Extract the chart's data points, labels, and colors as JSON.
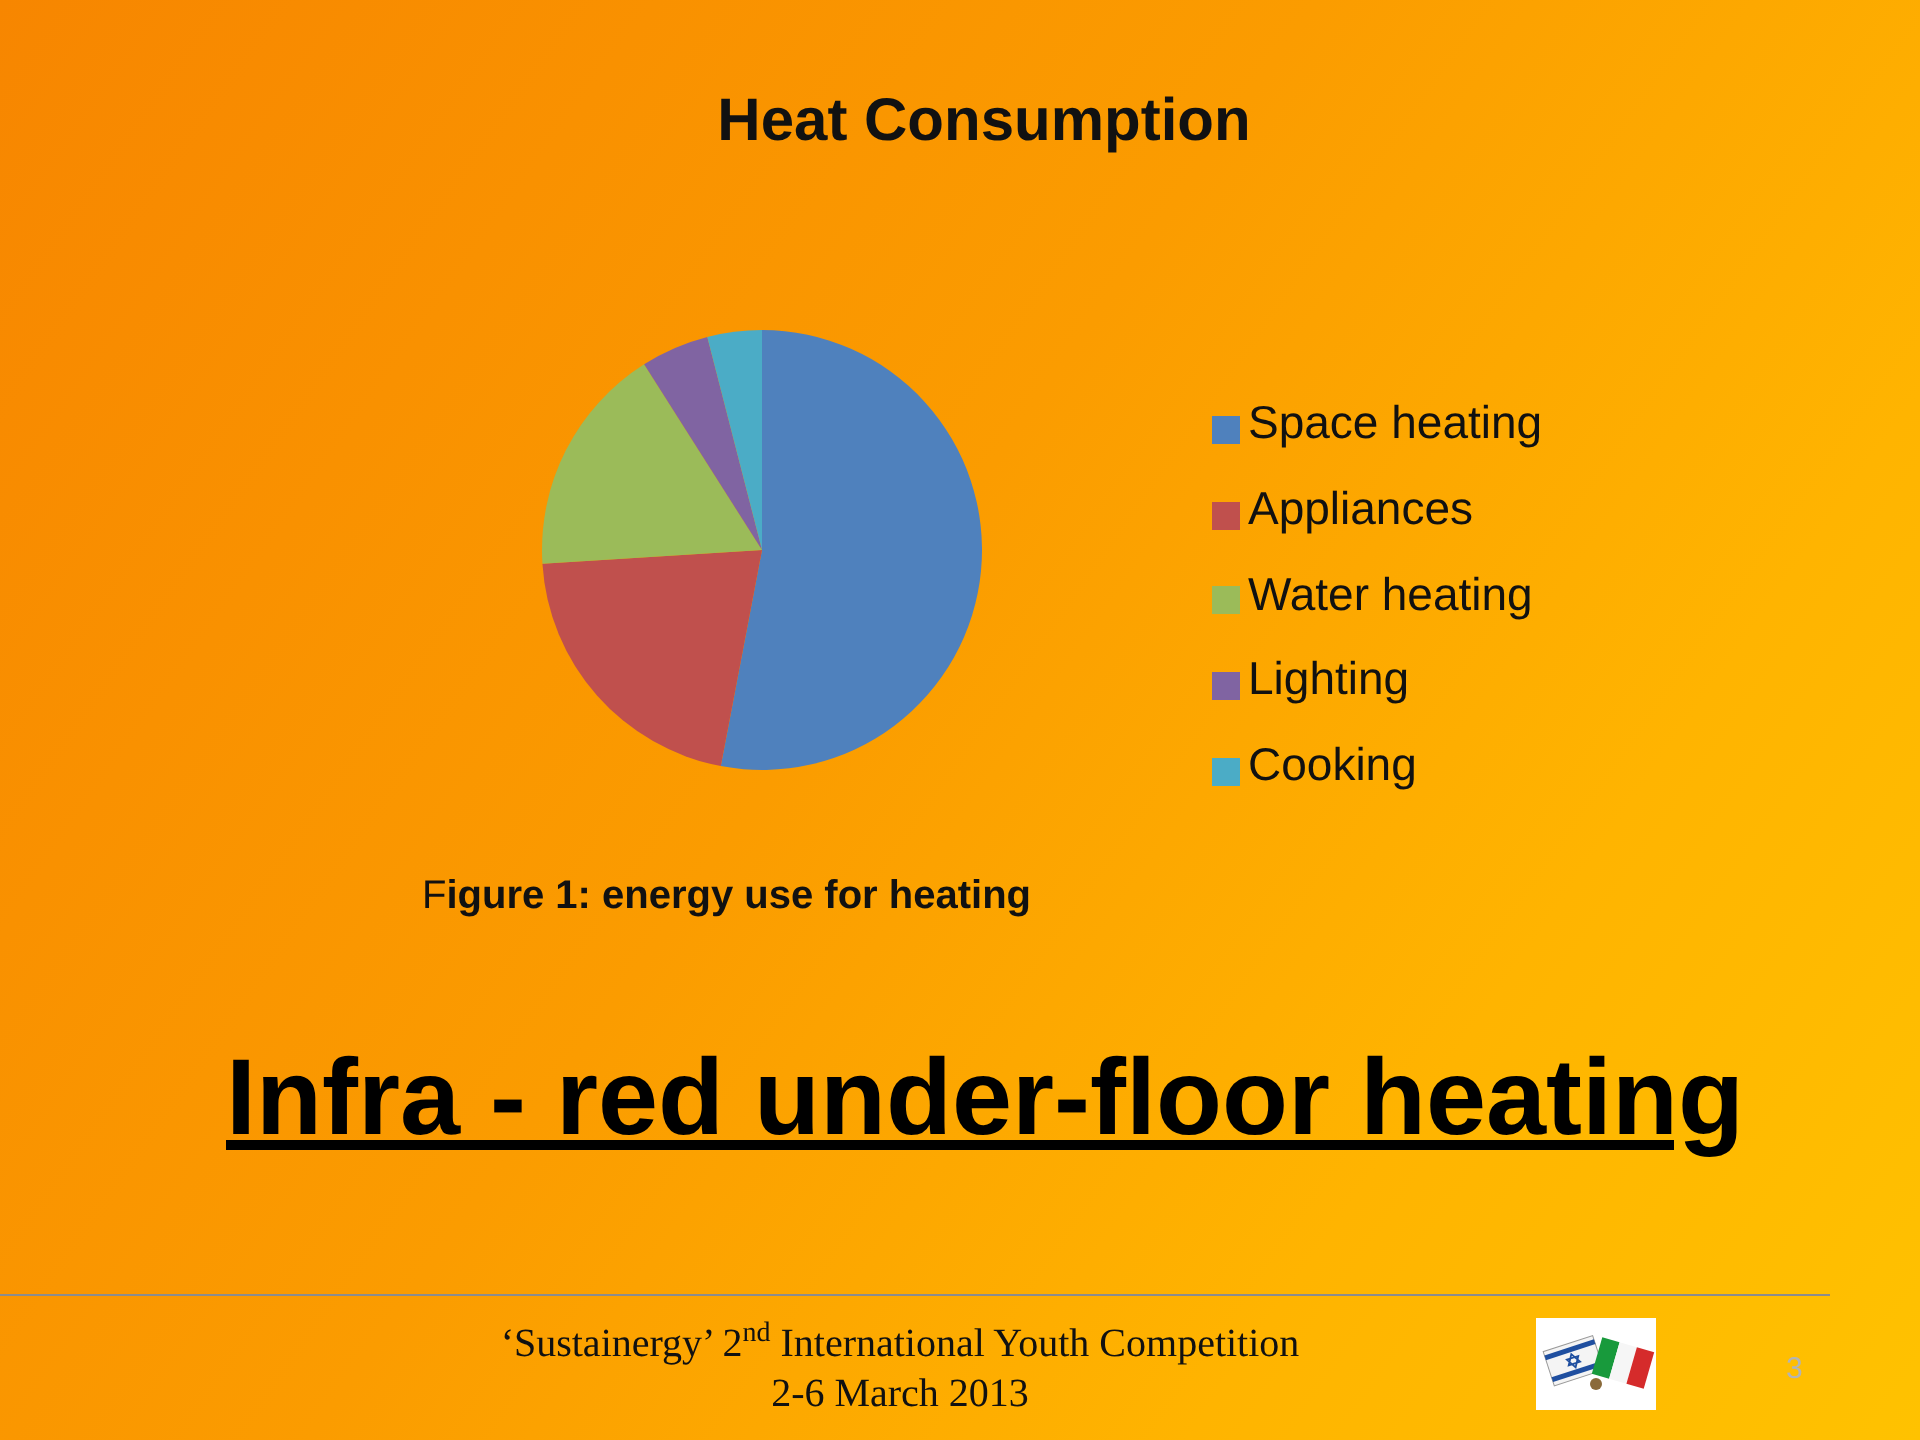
{
  "chart_data": {
    "type": "pie",
    "title": "Heat Consumption",
    "categories": [
      "Space heating",
      "Appliances",
      "Water heating",
      "Lighting",
      "Cooking"
    ],
    "values": [
      53,
      21,
      17,
      5,
      4
    ],
    "colors": [
      "#4f81bd",
      "#c0504d",
      "#9bbb59",
      "#8064a2",
      "#4bacc6"
    ],
    "legend": "right",
    "annotations": [
      "Figure 1: energy use for heating",
      "Infra - red under-floor heating",
      "‘Sustainergy’ 2$^{nd}$ International Youth Competition",
      "2-6 March 2013",
      "3"
    ]
  }
}
